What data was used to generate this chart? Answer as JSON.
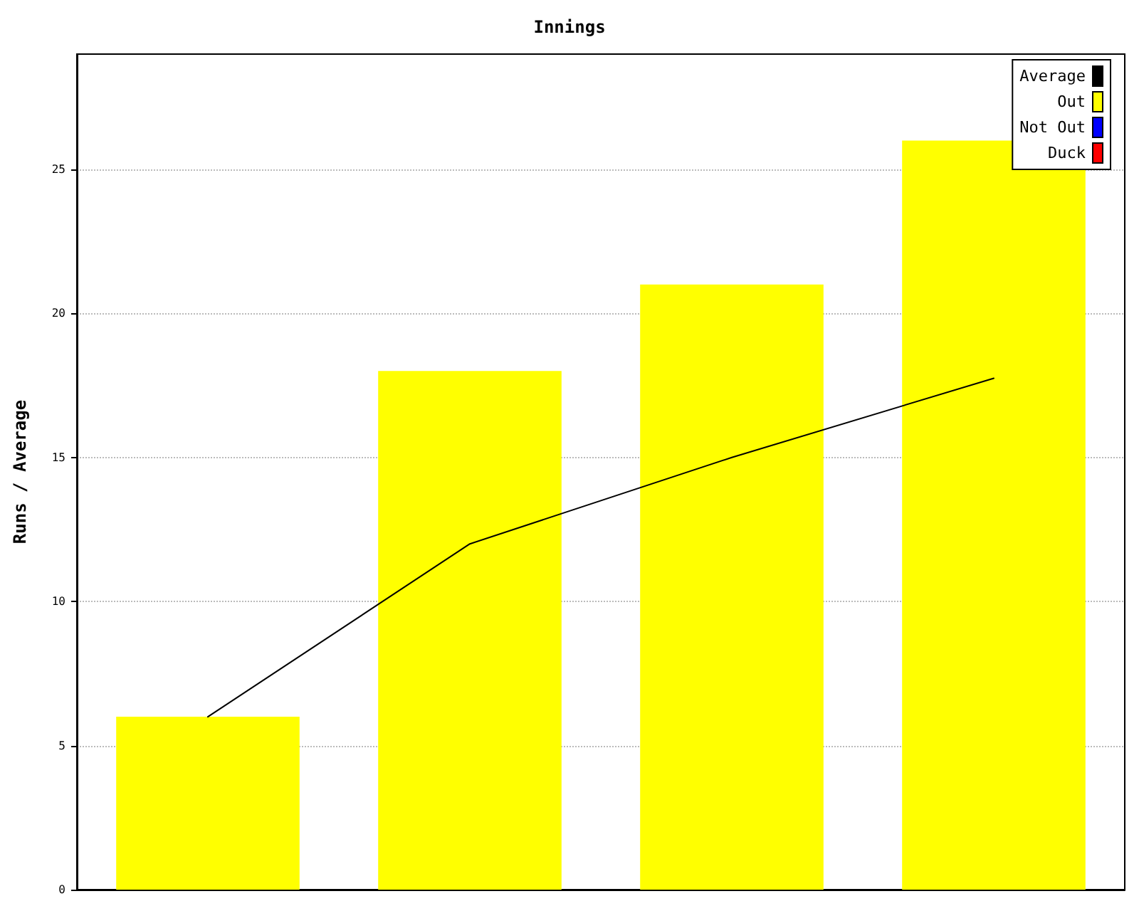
{
  "chart_data": {
    "type": "bar",
    "title": "Innings",
    "ylabel": "Runs / Average",
    "categories": [
      null,
      null,
      null,
      null
    ],
    "series": [
      {
        "name": "Average",
        "color": "#000000",
        "type": "line",
        "values": [
          6,
          12,
          15,
          17.75
        ]
      },
      {
        "name": "Out",
        "color": "#ffff00",
        "values": [
          6,
          18,
          21,
          26
        ]
      },
      {
        "name": "Not Out",
        "color": "#0000ff",
        "values": [
          null,
          null,
          null,
          null
        ]
      },
      {
        "name": "Duck",
        "color": "#ff0000",
        "values": [
          null,
          null,
          null,
          null
        ]
      }
    ],
    "ylim": [
      0,
      29
    ],
    "yticks": [
      0,
      5,
      10,
      15,
      20,
      25
    ],
    "grid": "y",
    "legend": "top right",
    "marker": "none",
    "line_style": "solid",
    "stacked": true
  }
}
